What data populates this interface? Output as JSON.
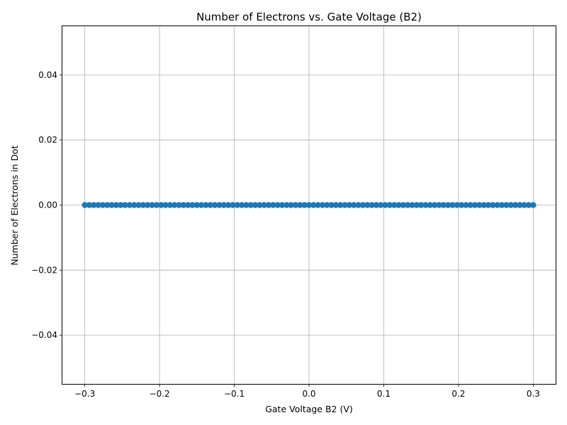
{
  "chart_data": {
    "type": "line",
    "title": "Number of Electrons vs. Gate Voltage (B2)",
    "xlabel": "Gate Voltage B2 (V)",
    "ylabel": "Number of Electrons in Dot",
    "xlim": [
      -0.33,
      0.33
    ],
    "ylim": [
      -0.055,
      0.055
    ],
    "x_ticks": [
      -0.3,
      -0.2,
      -0.1,
      0.0,
      0.1,
      0.2,
      0.3
    ],
    "x_tick_labels": [
      "−0.3",
      "−0.2",
      "−0.1",
      "0.0",
      "0.1",
      "0.2",
      "0.3"
    ],
    "y_ticks": [
      0.04,
      0.02,
      0.0,
      -0.02,
      -0.04
    ],
    "y_tick_labels": [
      "0.04",
      "0.02",
      "0.00",
      "−0.02",
      "−0.04"
    ],
    "grid": true,
    "marker": "circle",
    "series": [
      {
        "color": "#1f77b4",
        "x": [
          -0.3,
          -0.294,
          -0.288,
          -0.282,
          -0.276,
          -0.27,
          -0.264,
          -0.258,
          -0.252,
          -0.246,
          -0.24,
          -0.234,
          -0.228,
          -0.222,
          -0.216,
          -0.21,
          -0.204,
          -0.198,
          -0.192,
          -0.186,
          -0.18,
          -0.174,
          -0.168,
          -0.162,
          -0.156,
          -0.15,
          -0.144,
          -0.138,
          -0.132,
          -0.126,
          -0.12,
          -0.114,
          -0.108,
          -0.102,
          -0.096,
          -0.09,
          -0.084,
          -0.078,
          -0.072,
          -0.066,
          -0.06,
          -0.054,
          -0.048,
          -0.042,
          -0.036,
          -0.03,
          -0.024,
          -0.018,
          -0.012,
          -0.006,
          0.0,
          0.006,
          0.012,
          0.018,
          0.024,
          0.03,
          0.036,
          0.042,
          0.048,
          0.054,
          0.06,
          0.066,
          0.072,
          0.078,
          0.084,
          0.09,
          0.096,
          0.102,
          0.108,
          0.114,
          0.12,
          0.126,
          0.132,
          0.138,
          0.144,
          0.15,
          0.156,
          0.162,
          0.168,
          0.174,
          0.18,
          0.186,
          0.192,
          0.198,
          0.204,
          0.21,
          0.216,
          0.222,
          0.228,
          0.234,
          0.24,
          0.246,
          0.252,
          0.258,
          0.264,
          0.27,
          0.276,
          0.282,
          0.288,
          0.294,
          0.3
        ],
        "y": [
          0,
          0,
          0,
          0,
          0,
          0,
          0,
          0,
          0,
          0,
          0,
          0,
          0,
          0,
          0,
          0,
          0,
          0,
          0,
          0,
          0,
          0,
          0,
          0,
          0,
          0,
          0,
          0,
          0,
          0,
          0,
          0,
          0,
          0,
          0,
          0,
          0,
          0,
          0,
          0,
          0,
          0,
          0,
          0,
          0,
          0,
          0,
          0,
          0,
          0,
          0,
          0,
          0,
          0,
          0,
          0,
          0,
          0,
          0,
          0,
          0,
          0,
          0,
          0,
          0,
          0,
          0,
          0,
          0,
          0,
          0,
          0,
          0,
          0,
          0,
          0,
          0,
          0,
          0,
          0,
          0,
          0,
          0,
          0,
          0,
          0,
          0,
          0,
          0,
          0,
          0,
          0,
          0,
          0,
          0,
          0,
          0,
          0,
          0,
          0,
          0
        ]
      }
    ]
  }
}
